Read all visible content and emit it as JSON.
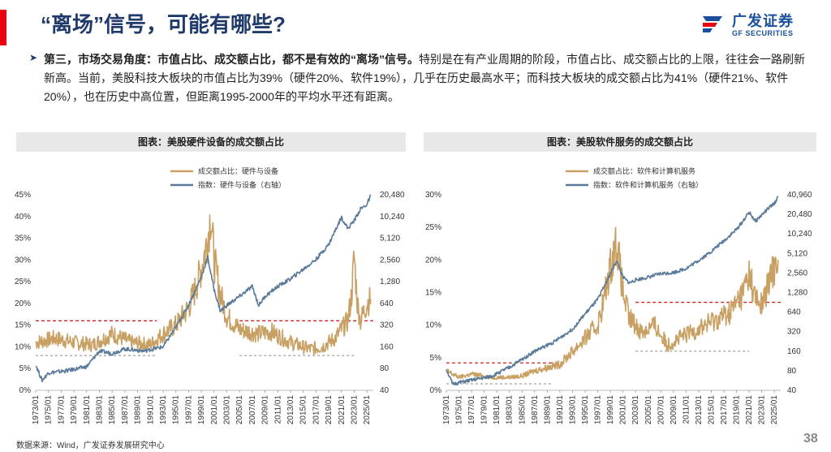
{
  "slide": {
    "title": "“离场”信号，可能有哪些?",
    "bullet_icon": "arrow-right-icon",
    "paragraph_bold": "第三，市场交易角度：市值占比、成交额占比，都不是有效的“离场”信号。",
    "paragraph_rest": "特别是在有产业周期的阶段，市值占比、成交额占比的上限，往往会一路刷新新高。当前，美股科技大板块的市值占比为39%（硬件20%、软件19%），几乎在历史最高水平；而科技大板块的成交额占比为41%（硬件21%、软件20%），也在历史中高位置，但距离1995-2000年的平均水平还有距离。",
    "source": "数据来源：Wind，广发证券发展研究中心",
    "page_number": "38"
  },
  "logo": {
    "icon": "gf-logo-icon",
    "name_cn": "广发证券",
    "name_en": "GF SECURITIES"
  },
  "colors": {
    "accent_red": "#e60012",
    "title_blue": "#1f3a6b",
    "tan_series": "#c9a063",
    "blue_series": "#5a7a9a",
    "ref_red": "#cc2222",
    "ref_gray": "#888888"
  },
  "chart_data": [
    {
      "type": "line",
      "title": "图表：美股硬件设备的成交额占比",
      "x_tick_labels": [
        "1973/01",
        "1975/01",
        "1977/01",
        "1979/01",
        "1981/01",
        "1983/01",
        "1985/01",
        "1987/01",
        "1989/01",
        "1991/01",
        "1993/01",
        "1995/01",
        "1997/01",
        "1999/01",
        "2001/01",
        "2003/01",
        "2005/01",
        "2007/01",
        "2009/01",
        "2011/01",
        "2013/01",
        "2015/01",
        "2017/01",
        "2019/01",
        "2021/01",
        "2023/01",
        "2025/01"
      ],
      "x_range": [
        1973,
        2026
      ],
      "y_left": {
        "ticks": [
          "0%",
          "5%",
          "10%",
          "15%",
          "20%",
          "25%",
          "30%",
          "35%",
          "40%",
          "45%"
        ],
        "range": [
          0,
          45
        ]
      },
      "y_right": {
        "ticks": [
          "40",
          "80",
          "160",
          "320",
          "640",
          "1,280",
          "2,560",
          "5,120",
          "10,240",
          "20,480"
        ],
        "scale": "log2",
        "range": [
          40,
          20480
        ]
      },
      "series": [
        {
          "name": "成交额占比：硬件与设备",
          "axis": "left",
          "x": [
            1973,
            1976,
            1979,
            1982,
            1985,
            1988,
            1991,
            1993,
            1995,
            1997,
            1998,
            1999,
            2000,
            2000.5,
            2001,
            2002,
            2003,
            2005,
            2008,
            2010,
            2013,
            2016,
            2018,
            2020,
            2022,
            2022.6,
            2023,
            2023.5,
            2024,
            2025,
            2025.6
          ],
          "values": [
            11,
            12,
            11,
            10.5,
            13,
            11,
            10.5,
            13,
            15,
            19,
            23,
            28,
            35,
            40.8,
            30,
            22,
            17,
            14,
            13,
            13.5,
            11,
            9.5,
            10,
            12,
            16,
            22,
            31,
            20,
            16,
            20,
            21
          ]
        },
        {
          "name": "指数：硬件与设备（右轴）",
          "axis": "right",
          "x": [
            1973,
            1974,
            1975,
            1978,
            1981,
            1983,
            1985,
            1987,
            1990,
            1993,
            1995,
            1997,
            1999,
            2000,
            2001,
            2002,
            2003,
            2005,
            2007,
            2008,
            2009,
            2011,
            2013,
            2015,
            2017,
            2019,
            2020,
            2021,
            2022,
            2023,
            2024,
            2025,
            2025.6
          ],
          "values": [
            90,
            55,
            70,
            75,
            85,
            140,
            130,
            150,
            140,
            160,
            300,
            600,
            1500,
            2800,
            1000,
            500,
            600,
            800,
            1100,
            600,
            800,
            1100,
            1400,
            1900,
            2600,
            4200,
            6500,
            10000,
            7000,
            9000,
            13000,
            15000,
            20000
          ]
        }
      ],
      "reference_lines": [
        {
          "style": "red-dashed",
          "y_left": 16,
          "x_from": 1973,
          "x_to": 1992
        },
        {
          "style": "red-dashed",
          "y_left": 16,
          "x_from": 2005,
          "x_to": 2026
        },
        {
          "style": "gray-dashed",
          "y_left": 8,
          "x_from": 1973,
          "x_to": 1992
        },
        {
          "style": "gray-dashed",
          "y_left": 8,
          "x_from": 2005,
          "x_to": 2023
        }
      ]
    },
    {
      "type": "line",
      "title": "图表：美股软件服务的成交额占比",
      "x_tick_labels": [
        "1973/01",
        "1975/01",
        "1977/01",
        "1979/01",
        "1981/01",
        "1983/01",
        "1985/01",
        "1987/01",
        "1989/01",
        "1991/01",
        "1993/01",
        "1995/01",
        "1997/01",
        "1999/01",
        "2001/01",
        "2003/01",
        "2005/01",
        "2007/01",
        "2009/01",
        "2011/01",
        "2013/01",
        "2015/01",
        "2017/01",
        "2019/01",
        "2021/01",
        "2023/01",
        "2025/01"
      ],
      "x_range": [
        1973,
        2026
      ],
      "y_left": {
        "ticks": [
          "0%",
          "5%",
          "10%",
          "15%",
          "20%",
          "25%",
          "30%"
        ],
        "range": [
          0,
          30
        ]
      },
      "y_right": {
        "ticks": [
          "40",
          "80",
          "160",
          "320",
          "640",
          "1,280",
          "2,560",
          "5,120",
          "10,240",
          "20,480",
          "40,960"
        ],
        "scale": "log2",
        "range": [
          40,
          40960
        ]
      },
      "series": [
        {
          "name": "成交额占比：软件和计算机服务",
          "axis": "left",
          "x": [
            1973,
            1975,
            1977,
            1980,
            1983,
            1985,
            1987,
            1989,
            1991,
            1993,
            1995,
            1997,
            1998,
            1999,
            2000,
            2001,
            2002,
            2004,
            2006,
            2008,
            2010,
            2012,
            2014,
            2016,
            2018,
            2020,
            2021,
            2022,
            2023,
            2024,
            2025,
            2025.6
          ],
          "values": [
            3,
            2,
            2.5,
            2,
            2,
            2.2,
            3,
            3.5,
            4,
            6,
            8,
            10,
            14,
            19,
            23,
            15,
            11,
            9,
            10,
            7,
            8,
            9,
            10,
            11,
            12,
            15,
            18,
            14,
            13,
            16,
            19,
            20
          ]
        },
        {
          "name": "指数：软件和计算机服务（右轴）",
          "axis": "right",
          "x": [
            1973,
            1974,
            1976,
            1980,
            1983,
            1985,
            1987,
            1990,
            1993,
            1995,
            1997,
            1999,
            2000,
            2001,
            2002,
            2003,
            2005,
            2007,
            2009,
            2011,
            2013,
            2015,
            2017,
            2019,
            2020,
            2021,
            2022,
            2023,
            2024,
            2025,
            2025.6
          ],
          "values": [
            85,
            50,
            55,
            65,
            90,
            120,
            160,
            220,
            350,
            600,
            1000,
            2500,
            4000,
            2200,
            1800,
            2000,
            2200,
            2500,
            2600,
            3000,
            4000,
            5500,
            8000,
            12000,
            16000,
            22000,
            16000,
            20000,
            25000,
            30000,
            38000
          ]
        }
      ],
      "reference_lines": [
        {
          "style": "red-dashed",
          "y_left": 4.2,
          "x_from": 1973,
          "x_to": 1990
        },
        {
          "style": "red-dashed",
          "y_left": 13.5,
          "x_from": 2003,
          "x_to": 2026
        },
        {
          "style": "gray-dashed",
          "y_left": 1,
          "x_from": 1973,
          "x_to": 1990
        },
        {
          "style": "gray-dashed",
          "y_left": 6,
          "x_from": 2003,
          "x_to": 2021
        }
      ]
    }
  ]
}
